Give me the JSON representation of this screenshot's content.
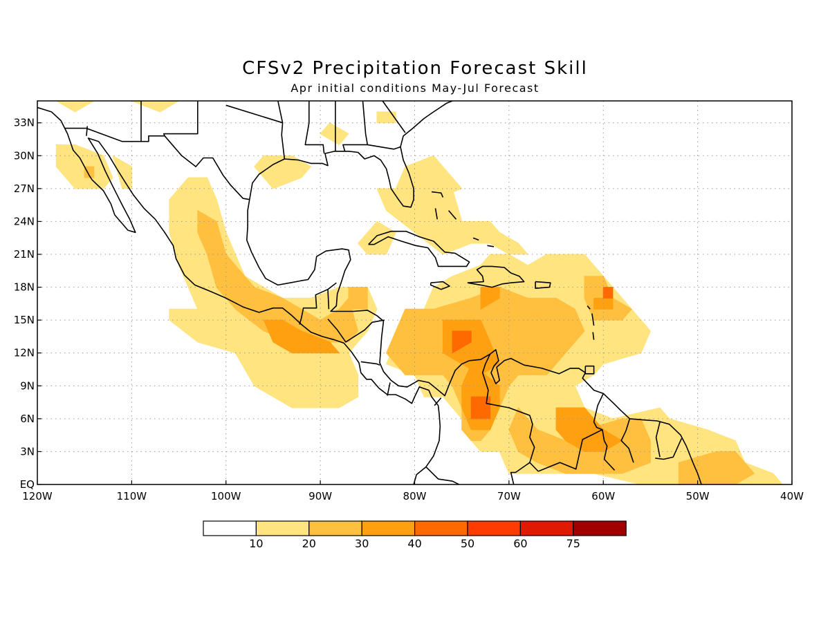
{
  "title": "CFSv2 Precipitation Forecast Skill",
  "subtitle": "Apr initial conditions  May-Jul Forecast",
  "chart_data": {
    "type": "heatmap",
    "title": "CFSv2 Precipitation Forecast Skill",
    "subtitle": "Apr initial conditions  May-Jul Forecast",
    "xlim": [
      -120,
      -40
    ],
    "ylim": [
      0,
      35
    ],
    "x_ticks": [
      {
        "value": -120,
        "label": "120W"
      },
      {
        "value": -110,
        "label": "110W"
      },
      {
        "value": -100,
        "label": "100W"
      },
      {
        "value": -90,
        "label": "90W"
      },
      {
        "value": -80,
        "label": "80W"
      },
      {
        "value": -70,
        "label": "70W"
      },
      {
        "value": -60,
        "label": "60W"
      },
      {
        "value": -50,
        "label": "50W"
      },
      {
        "value": -40,
        "label": "40W"
      }
    ],
    "y_ticks": [
      {
        "value": 0,
        "label": "EQ"
      },
      {
        "value": 3,
        "label": "3N"
      },
      {
        "value": 6,
        "label": "6N"
      },
      {
        "value": 9,
        "label": "9N"
      },
      {
        "value": 12,
        "label": "12N"
      },
      {
        "value": 15,
        "label": "15N"
      },
      {
        "value": 18,
        "label": "18N"
      },
      {
        "value": 21,
        "label": "21N"
      },
      {
        "value": 24,
        "label": "24N"
      },
      {
        "value": 27,
        "label": "27N"
      },
      {
        "value": 30,
        "label": "30N"
      },
      {
        "value": 33,
        "label": "33N"
      }
    ],
    "grid": true,
    "colorbar": {
      "levels": [
        "10",
        "20",
        "30",
        "40",
        "50",
        "60",
        "75"
      ],
      "colors": [
        "#ffffff",
        "#ffe47f",
        "#ffc040",
        "#ffa010",
        "#ff6a00",
        "#ff3c00",
        "#e01a00",
        "#a00000"
      ]
    },
    "skill_regions": [
      {
        "level": 1,
        "polygons": [
          [
            [
              -104,
              28
            ],
            [
              -102,
              28
            ],
            [
              -101,
              26
            ],
            [
              -100,
              23
            ],
            [
              -99,
              21
            ],
            [
              -98,
              19
            ],
            [
              -96,
              18
            ],
            [
              -94,
              17
            ],
            [
              -91,
              17
            ],
            [
              -88,
              18
            ],
            [
              -85,
              18
            ],
            [
              -84,
              16
            ],
            [
              -85,
              14
            ],
            [
              -87,
              12
            ],
            [
              -86,
              10
            ],
            [
              -86,
              8
            ],
            [
              -88,
              7
            ],
            [
              -93,
              7
            ],
            [
              -97,
              9
            ],
            [
              -99,
              12
            ],
            [
              -103,
              13
            ],
            [
              -106,
              15
            ],
            [
              -106,
              16
            ],
            [
              -103,
              16
            ],
            [
              -104,
              18
            ],
            [
              -105,
              20
            ],
            [
              -106,
              23
            ],
            [
              -106,
              26
            ]
          ],
          [
            [
              -83,
              11
            ],
            [
              -81,
              15
            ],
            [
              -79,
              16
            ],
            [
              -78,
              18
            ],
            [
              -76,
              19
            ],
            [
              -73,
              20
            ],
            [
              -72,
              21
            ],
            [
              -70,
              21
            ],
            [
              -68,
              20
            ],
            [
              -66,
              21
            ],
            [
              -62,
              21
            ],
            [
              -60,
              19
            ],
            [
              -57,
              16
            ],
            [
              -55,
              14
            ],
            [
              -56,
              12
            ],
            [
              -60,
              11
            ],
            [
              -61,
              10
            ],
            [
              -63,
              9
            ],
            [
              -62,
              7
            ],
            [
              -59,
              6
            ],
            [
              -54,
              7
            ],
            [
              -53,
              6
            ],
            [
              -49,
              5
            ],
            [
              -46,
              4
            ],
            [
              -45,
              2
            ],
            [
              -42,
              1
            ],
            [
              -41,
              0
            ],
            [
              -56,
              0
            ],
            [
              -61,
              1
            ],
            [
              -65,
              1
            ],
            [
              -70,
              1
            ],
            [
              -71,
              3
            ],
            [
              -73,
              3
            ],
            [
              -74,
              4
            ],
            [
              -75,
              6
            ],
            [
              -77,
              8
            ],
            [
              -79,
              8
            ],
            [
              -80,
              10
            ]
          ],
          [
            [
              -76,
              27
            ],
            [
              -75,
              24
            ],
            [
              -72,
              24
            ],
            [
              -71,
              23
            ],
            [
              -69,
              22
            ],
            [
              -68,
              21
            ],
            [
              -70,
              21
            ],
            [
              -72,
              22
            ],
            [
              -74,
              22
            ],
            [
              -77,
              21
            ],
            [
              -80,
              23
            ],
            [
              -83,
              25
            ],
            [
              -84,
              27
            ]
          ],
          [
            [
              -78,
              30
            ],
            [
              -75,
              27
            ],
            [
              -78,
              26
            ],
            [
              -81,
              25
            ],
            [
              -82,
              27
            ],
            [
              -81,
              29
            ]
          ],
          [
            [
              -84,
              24
            ],
            [
              -82,
              23
            ],
            [
              -83,
              21
            ],
            [
              -85,
              21
            ],
            [
              -86,
              22
            ]
          ],
          [
            [
              -112,
              30
            ],
            [
              -111,
              27
            ],
            [
              -110,
              27
            ],
            [
              -110,
              29
            ],
            [
              -112,
              30
            ]
          ],
          [
            [
              -118,
              29
            ],
            [
              -116,
              27
            ],
            [
              -113,
              27
            ],
            [
              -112,
              28
            ],
            [
              -113,
              30
            ],
            [
              -116,
              31
            ],
            [
              -118,
              31
            ]
          ],
          [
            [
              -89,
              33
            ],
            [
              -87,
              32
            ],
            [
              -88,
              31
            ],
            [
              -90,
              32
            ]
          ],
          [
            [
              -110,
              35
            ],
            [
              -107,
              34
            ],
            [
              -105,
              35
            ]
          ],
          [
            [
              -97,
              29
            ],
            [
              -95,
              27
            ],
            [
              -92,
              28
            ],
            [
              -91,
              29
            ],
            [
              -93,
              30
            ],
            [
              -96,
              30
            ]
          ],
          [
            [
              -118,
              35
            ],
            [
              -116,
              34
            ],
            [
              -114,
              35
            ]
          ],
          [
            [
              -84,
              33
            ],
            [
              -82,
              33
            ],
            [
              -82,
              34
            ],
            [
              -84,
              34
            ]
          ]
        ]
      },
      {
        "level": 2,
        "polygons": [
          [
            [
              -103,
              25
            ],
            [
              -101,
              24
            ],
            [
              -100,
              21
            ],
            [
              -98,
              19
            ],
            [
              -97,
              18
            ],
            [
              -94,
              17
            ],
            [
              -92,
              16
            ],
            [
              -90,
              15
            ],
            [
              -88,
              16
            ],
            [
              -87,
              17
            ],
            [
              -86,
              14
            ],
            [
              -87,
              13
            ],
            [
              -89,
              13
            ],
            [
              -91,
              12
            ],
            [
              -93,
              13
            ],
            [
              -96,
              14
            ],
            [
              -99,
              16
            ],
            [
              -101,
              18
            ],
            [
              -102,
              21
            ],
            [
              -103,
              23
            ]
          ],
          [
            [
              -83,
              12
            ],
            [
              -81,
              16
            ],
            [
              -78,
              16
            ],
            [
              -74,
              17
            ],
            [
              -71,
              18
            ],
            [
              -68,
              17
            ],
            [
              -65,
              17
            ],
            [
              -63,
              16
            ],
            [
              -62,
              14
            ],
            [
              -64,
              12
            ],
            [
              -65,
              11
            ],
            [
              -66,
              10
            ],
            [
              -69,
              10
            ],
            [
              -70,
              9
            ],
            [
              -71,
              7
            ],
            [
              -72,
              5
            ],
            [
              -73,
              4
            ],
            [
              -74,
              4
            ],
            [
              -75,
              5
            ],
            [
              -75,
              7
            ],
            [
              -76,
              9
            ],
            [
              -77,
              10
            ],
            [
              -79,
              10
            ],
            [
              -81,
              10
            ]
          ],
          [
            [
              -69,
              7
            ],
            [
              -67,
              5
            ],
            [
              -64,
              4
            ],
            [
              -62,
              5
            ],
            [
              -58,
              6
            ],
            [
              -56,
              6
            ],
            [
              -55,
              4
            ],
            [
              -55,
              2
            ],
            [
              -58,
              1
            ],
            [
              -61,
              1
            ],
            [
              -64,
              1
            ],
            [
              -67,
              2
            ],
            [
              -69,
              3
            ],
            [
              -70,
              5
            ]
          ],
          [
            [
              -62,
              19
            ],
            [
              -60,
              19
            ],
            [
              -59,
              17
            ],
            [
              -57,
              16
            ],
            [
              -58,
              15
            ],
            [
              -61,
              15
            ],
            [
              -62,
              17
            ]
          ],
          [
            [
              -48,
              3
            ],
            [
              -46,
              3
            ],
            [
              -44,
              1
            ],
            [
              -46,
              0
            ],
            [
              -52,
              0
            ],
            [
              -52,
              2
            ]
          ],
          [
            [
              -87,
              18
            ],
            [
              -85,
              18
            ],
            [
              -85,
              16
            ],
            [
              -87,
              16
            ]
          ],
          [
            [
              -115,
              29
            ],
            [
              -114,
              29
            ],
            [
              -114,
              28
            ],
            [
              -115,
              28
            ]
          ]
        ]
      },
      {
        "level": 3,
        "polygons": [
          [
            [
              -96,
              15
            ],
            [
              -94,
              15
            ],
            [
              -92,
              14
            ],
            [
              -89,
              13
            ],
            [
              -88,
              12
            ],
            [
              -90,
              12
            ],
            [
              -93,
              12
            ],
            [
              -95,
              13
            ]
          ],
          [
            [
              -77,
              15
            ],
            [
              -73,
              15
            ],
            [
              -72,
              13
            ],
            [
              -71,
              11
            ],
            [
              -73,
              10
            ],
            [
              -75,
              11
            ],
            [
              -77,
              12
            ]
          ],
          [
            [
              -74,
              11
            ],
            [
              -71,
              9
            ],
            [
              -71,
              7
            ],
            [
              -72,
              5
            ],
            [
              -74,
              5
            ],
            [
              -75,
              7
            ],
            [
              -75,
              9
            ]
          ],
          [
            [
              -65,
              7
            ],
            [
              -62,
              7
            ],
            [
              -60,
              5
            ],
            [
              -58,
              4
            ],
            [
              -60,
              3
            ],
            [
              -62,
              3
            ],
            [
              -64,
              4
            ],
            [
              -65,
              5
            ]
          ],
          [
            [
              -73,
              18
            ],
            [
              -71,
              18
            ],
            [
              -71,
              17
            ],
            [
              -73,
              16
            ]
          ],
          [
            [
              -61,
              17
            ],
            [
              -59,
              17
            ],
            [
              -59,
              16
            ],
            [
              -61,
              16
            ]
          ]
        ]
      },
      {
        "level": 4,
        "polygons": [
          [
            [
              -76,
              14
            ],
            [
              -74,
              14
            ],
            [
              -74,
              13
            ],
            [
              -76,
              12
            ]
          ],
          [
            [
              -74,
              8
            ],
            [
              -72,
              8
            ],
            [
              -72,
              6
            ],
            [
              -74,
              6
            ]
          ],
          [
            [
              -60,
              18
            ],
            [
              -59,
              18
            ],
            [
              -59,
              17
            ],
            [
              -60,
              17
            ]
          ]
        ]
      }
    ]
  }
}
